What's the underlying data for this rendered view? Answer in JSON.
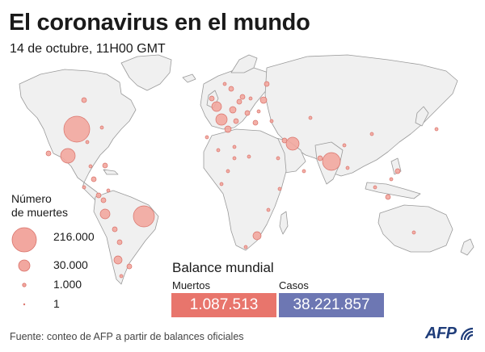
{
  "header": {
    "title": "El coronavirus en el mundo",
    "subtitle": "14 de octubre, 11H00 GMT"
  },
  "legend": {
    "title_line1": "Número",
    "title_line2": "de muertes",
    "items": [
      {
        "label": "216.000",
        "value": 216000
      },
      {
        "label": "30.000",
        "value": 30000
      },
      {
        "label": "1.000",
        "value": 1000
      },
      {
        "label": "1",
        "value": 1
      }
    ]
  },
  "balance": {
    "title": "Balance mundial",
    "deaths_label": "Muertos",
    "cases_label": "Casos",
    "deaths_value": "1.087.513",
    "cases_value": "38.221.857"
  },
  "footer": {
    "source": "Fuente: conteo de AFP a partir de balances oficiales",
    "brand": "AFP"
  },
  "colors": {
    "bubble_fill": "#f2a79f",
    "bubble_stroke": "#d9726a",
    "land": "#f0f0f0",
    "land_stroke": "#9a9a9a",
    "deaths_box": "#e8756c",
    "cases_box": "#6d77b3",
    "brand": "#1f3d7a"
  },
  "icons": {
    "brand_logo": "afp-logo-icon"
  }
}
